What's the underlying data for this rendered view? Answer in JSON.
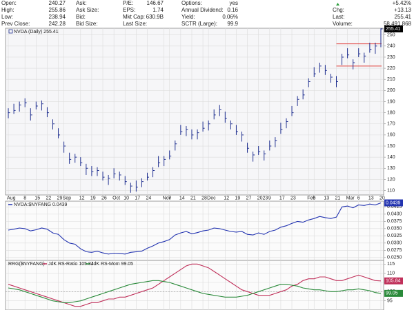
{
  "header": {
    "rows": [
      [
        {
          "label": "Open:",
          "value": "240.27"
        },
        {
          "label": "Ask:"
        },
        {
          "label": "P/E:",
          "value": "146.67"
        },
        {
          "label": "Options:",
          "value": "yes"
        },
        {
          "value": "+5.42%",
          "color": "#2e9e3e"
        }
      ],
      [
        {
          "label": "High:",
          "value": "255.86"
        },
        {
          "label": "Ask Size:"
        },
        {
          "label": "EPS:",
          "value": "1.74"
        },
        {
          "label": "Annual Dividend:",
          "value": "0.16"
        },
        {
          "label": "Chg:",
          "value": "+13.13"
        }
      ],
      [
        {
          "label": "Low:",
          "value": "238.94"
        },
        {
          "label": "Bid:"
        },
        {
          "label": "Mkt Cap:",
          "value": "630.9B"
        },
        {
          "label": "Yield:",
          "value": "0.06%"
        },
        {
          "label": "Last:",
          "value": "255.41"
        }
      ],
      [
        {
          "label": "Prev Close:",
          "value": "242.28"
        },
        {
          "label": "Bid Size:"
        },
        {
          "label": "Last Size:"
        },
        {
          "label": "SCTR (Large):",
          "value": "99.9"
        },
        {
          "label": "Volume:",
          "value": "58,491,868"
        }
      ]
    ]
  },
  "chart_data": [
    {
      "type": "hlc",
      "title": "NVDA (Daily) 255.41",
      "color": "#1f2f8f",
      "grid": true,
      "categories": [
        "Aug",
        null,
        null,
        "8",
        null,
        "15",
        null,
        "22",
        null,
        "29",
        "Sep",
        null,
        null,
        "12",
        null,
        "19",
        null,
        "26",
        null,
        "Oct",
        null,
        "10",
        null,
        "17",
        null,
        "24",
        null,
        null,
        "Nov",
        "7",
        null,
        "14",
        null,
        "21",
        null,
        "28",
        "Dec",
        null,
        null,
        "12",
        null,
        "19",
        null,
        "27",
        null,
        "2023",
        null,
        "9",
        null,
        "17",
        null,
        "23",
        null,
        null,
        "Feb",
        "6",
        null,
        "13",
        null,
        "21",
        null,
        "Mar",
        null,
        "6",
        null,
        "13",
        null,
        "20"
      ],
      "high": [
        184,
        188,
        190,
        193,
        184,
        190,
        191,
        185,
        174,
        166,
        154,
        144,
        143,
        140,
        134,
        132,
        131,
        127,
        124,
        130,
        127,
        123,
        117,
        119,
        121,
        126,
        131,
        141,
        141,
        146,
        155,
        169,
        168,
        165,
        165,
        172,
        173,
        183,
        187,
        181,
        173,
        169,
        163,
        153,
        145,
        150,
        146,
        155,
        158,
        171,
        175,
        186,
        195,
        201,
        211,
        221,
        225,
        223,
        215,
        213,
        233,
        238,
        228,
        238,
        234,
        243,
        243,
        255.86
      ],
      "low": [
        175,
        179,
        181,
        185,
        173,
        183,
        182,
        176,
        165,
        157,
        144,
        134,
        135,
        132,
        124,
        123,
        123,
        119,
        115,
        121,
        119,
        115,
        108,
        109,
        113,
        119,
        122,
        131,
        132,
        138,
        146,
        160,
        159,
        156,
        156,
        163,
        164,
        174,
        177,
        171,
        165,
        160,
        154,
        144,
        136,
        142,
        137,
        146,
        149,
        161,
        166,
        177,
        186,
        192,
        203,
        212,
        216,
        214,
        207,
        203,
        223,
        229,
        219,
        230,
        225,
        234,
        233,
        238.94
      ],
      "close": [
        180,
        182,
        187,
        189,
        178,
        186,
        188,
        180,
        170,
        160,
        150,
        138,
        140,
        135,
        130,
        127,
        128,
        122,
        121,
        125,
        124,
        118,
        114,
        113,
        118,
        122,
        128,
        135,
        138,
        141,
        152,
        163,
        165,
        160,
        162,
        166,
        170,
        178,
        183,
        175,
        170,
        163,
        160,
        148,
        142,
        145,
        143,
        150,
        155,
        165,
        172,
        180,
        192,
        196,
        208,
        215,
        222,
        218,
        212,
        208,
        230,
        232,
        225,
        233,
        231,
        237,
        240,
        255.41
      ],
      "hlines": [
        242,
        222
      ],
      "hline_color": "#e0403c",
      "ylim": [
        106,
        256
      ],
      "yticks": [
        110,
        120,
        130,
        140,
        150,
        160,
        170,
        180,
        190,
        200,
        210,
        220,
        230,
        240,
        250
      ]
    },
    {
      "type": "line",
      "title": "NVDA:$NYFANG 0.0439",
      "grid": true,
      "series": [
        {
          "name": "NVDA:$NYFANG",
          "color": "#2233b0",
          "values": [
            0.0345,
            0.0348,
            0.0352,
            0.035,
            0.0342,
            0.0346,
            0.0352,
            0.0348,
            0.0335,
            0.033,
            0.0312,
            0.03,
            0.0296,
            0.028,
            0.027,
            0.0268,
            0.0272,
            0.0266,
            0.0262,
            0.0265,
            0.0264,
            0.0262,
            0.0268,
            0.027,
            0.0272,
            0.0282,
            0.029,
            0.03,
            0.0305,
            0.0312,
            0.0328,
            0.0335,
            0.034,
            0.0332,
            0.0336,
            0.0342,
            0.0345,
            0.0352,
            0.035,
            0.0345,
            0.034,
            0.0338,
            0.034,
            0.033,
            0.0328,
            0.0335,
            0.033,
            0.034,
            0.0345,
            0.0355,
            0.036,
            0.0368,
            0.0375,
            0.0372,
            0.038,
            0.0385,
            0.0392,
            0.0388,
            0.0385,
            0.039,
            0.0425,
            0.0428,
            0.0422,
            0.0432,
            0.043,
            0.0435,
            0.0432,
            0.0439
          ]
        }
      ],
      "ylim": [
        0.024,
        0.0445
      ],
      "yticks": [
        {
          "value": 0.025,
          "label": "0.0250"
        },
        {
          "value": 0.0275,
          "label": "0.0275"
        },
        {
          "value": 0.03,
          "label": "0.0300"
        },
        {
          "value": 0.0325,
          "label": "0.0325"
        },
        {
          "value": 0.035,
          "label": "0.0350"
        },
        {
          "value": 0.0375,
          "label": "0.0375"
        },
        {
          "value": 0.04,
          "label": "0.0400"
        },
        {
          "value": 0.0425,
          "label": "0.0425"
        }
      ]
    },
    {
      "type": "line",
      "title": "RRG($NYFANG)",
      "grid": true,
      "reference_line": 100,
      "series": [
        {
          "name": "JdK RS-Ratio 105.84",
          "color": "#c0305a",
          "values": [
            104,
            103,
            102,
            101,
            100,
            99,
            98,
            97,
            96,
            95,
            94,
            93,
            92,
            92,
            93,
            94,
            94,
            95,
            96,
            96,
            97,
            97,
            98,
            99,
            100,
            101,
            102,
            104,
            106,
            108,
            110,
            112,
            114,
            115,
            115,
            114,
            113,
            111,
            109,
            107,
            105,
            103,
            101,
            100,
            99,
            98,
            98,
            98,
            99,
            100,
            101,
            103,
            104,
            106,
            107,
            107,
            108,
            108,
            107,
            106,
            106,
            107,
            108,
            109,
            108,
            107,
            106,
            105.84
          ]
        },
        {
          "name": "JdK RS-Mom 99.05",
          "color": "#2a8a3a",
          "values": [
            102,
            101.5,
            101,
            100,
            99,
            98,
            97,
            96,
            95,
            94.5,
            94,
            94,
            94.5,
            95,
            96,
            97,
            98,
            99,
            100,
            101,
            102,
            103,
            104,
            104.5,
            105,
            105.5,
            106,
            106,
            105.5,
            105,
            104,
            103,
            102,
            101,
            100,
            99,
            98.5,
            98,
            97.5,
            97,
            97,
            97,
            97.5,
            98,
            99,
            100,
            101,
            102,
            103,
            104,
            104,
            103.5,
            103,
            102,
            101.5,
            101,
            101,
            100.5,
            100,
            100,
            100.5,
            101,
            101,
            101.5,
            101,
            100.5,
            99.5,
            99.05
          ]
        }
      ],
      "ylim": [
        90,
        117
      ],
      "yticks": [
        95,
        100,
        105,
        110,
        115
      ]
    }
  ]
}
